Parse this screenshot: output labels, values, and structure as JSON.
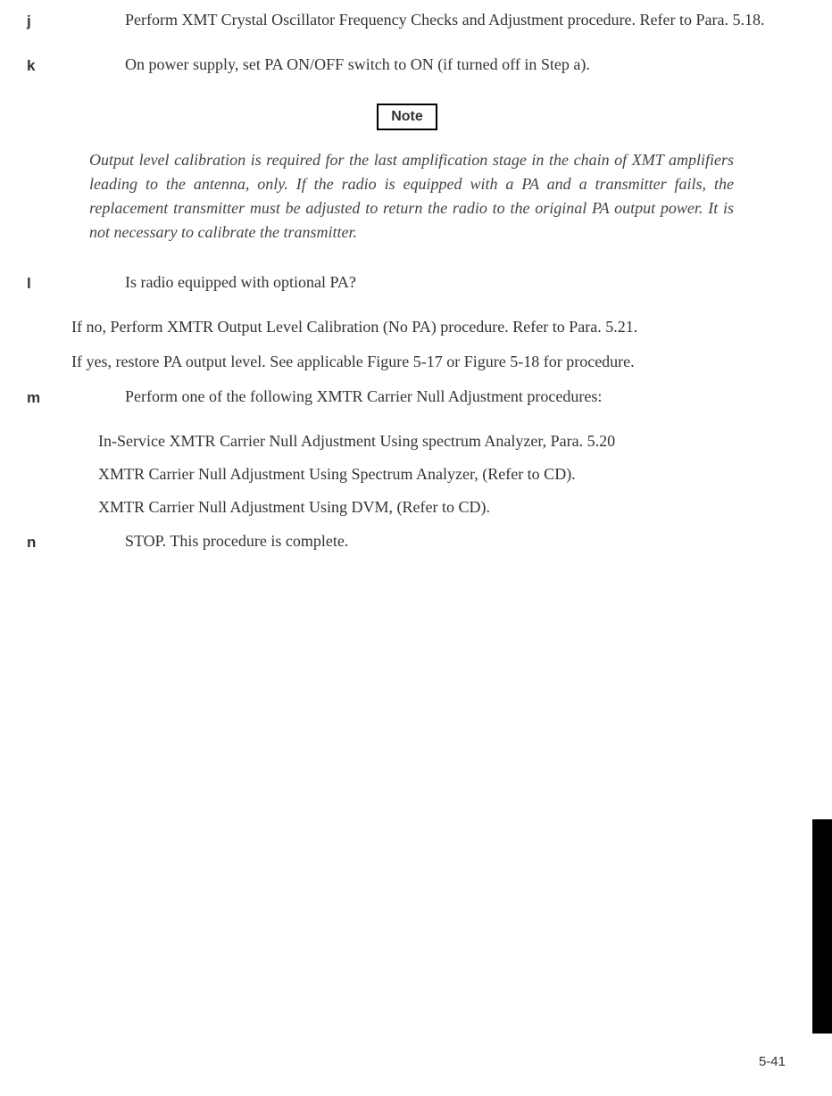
{
  "steps": {
    "j": {
      "label": "j",
      "text": "Perform XMT Crystal Oscillator Frequency Checks and Adjustment procedure. Refer to Para. 5.18."
    },
    "k": {
      "label": "k",
      "text": "On power supply, set PA ON/OFF switch to ON (if turned off in Step a)."
    },
    "l": {
      "label": "l",
      "text": "Is radio equipped with optional PA?",
      "sub1": "If no, Perform XMTR Output Level Calibration (No PA) procedure. Refer to Para. 5.21.",
      "sub2": "If yes, restore PA output level. See applicable Figure 5-17 or Figure 5-18 for procedure."
    },
    "m": {
      "label": "m",
      "text": "Perform one of the following XMTR Carrier Null Adjustment procedures:",
      "bullet1": "In-Service XMTR Carrier Null Adjustment Using spectrum Analyzer, Para. 5.20",
      "bullet2": "XMTR Carrier Null Adjustment Using Spectrum Analyzer, (Refer to CD).",
      "bullet3": "XMTR Carrier Null Adjustment Using DVM, (Refer to CD)."
    },
    "n": {
      "label": "n",
      "text": "STOP. This procedure is complete."
    }
  },
  "note": {
    "label": "Note",
    "text": "Output level calibration is required for the last amplification stage in the chain of XMT amplifiers leading to the antenna, only. If the radio is equipped with a PA and a transmitter fails, the replacement transmitter must be adjusted to return the radio to the original PA output power. It is not necessary to calibrate the transmitter."
  },
  "pageNumber": "5-41"
}
